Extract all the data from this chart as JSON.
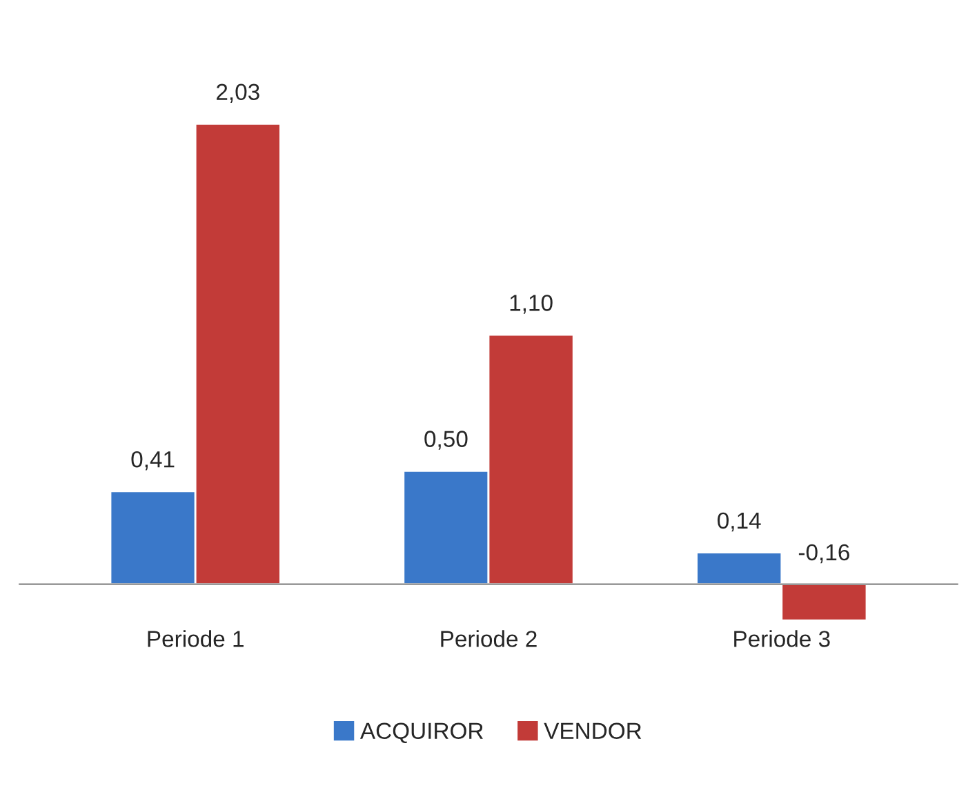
{
  "chart_data": {
    "type": "bar",
    "categories": [
      "Periode 1",
      "Periode 2",
      "Periode 3"
    ],
    "series": [
      {
        "name": "ACQUIROR",
        "color": "#3a78c9",
        "values": [
          0.41,
          0.5,
          0.14
        ],
        "value_labels": [
          "0,41",
          "0,50",
          "0,14"
        ]
      },
      {
        "name": "VENDOR",
        "color": "#c23b38",
        "values": [
          2.03,
          1.1,
          -0.16
        ],
        "value_labels": [
          "2,03",
          "1,10",
          "-0,16"
        ]
      }
    ],
    "legend": "bottom",
    "grid": false
  }
}
